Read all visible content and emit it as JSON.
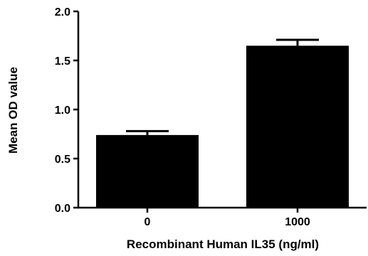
{
  "chart_data": {
    "type": "bar",
    "title": "",
    "xlabel": "Recombinant Human IL35 (ng/ml)",
    "ylabel": "Mean OD value",
    "categories": [
      "0",
      "1000"
    ],
    "values": [
      0.74,
      1.65
    ],
    "error_upper": [
      0.78,
      1.71
    ],
    "ylim": [
      0,
      2.0
    ],
    "yticks": [
      0.0,
      0.5,
      1.0,
      1.5,
      2.0
    ],
    "ytick_labels": [
      "0.0",
      "0.5",
      "1.0",
      "1.5",
      "2.0"
    ],
    "grid": false,
    "legend": "none",
    "bar_color": "#000000"
  }
}
